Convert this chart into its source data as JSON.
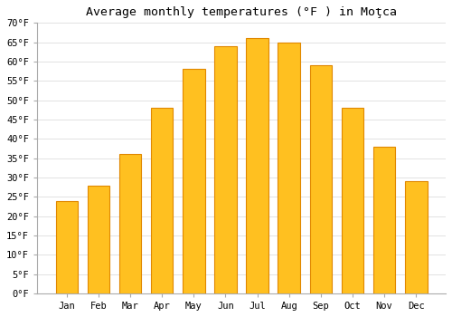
{
  "title": "Average monthly temperatures (°F ) in Moţca",
  "months": [
    "Jan",
    "Feb",
    "Mar",
    "Apr",
    "May",
    "Jun",
    "Jul",
    "Aug",
    "Sep",
    "Oct",
    "Nov",
    "Dec"
  ],
  "values": [
    24,
    28,
    36,
    48,
    58,
    64,
    66,
    65,
    59,
    48,
    38,
    29
  ],
  "bar_color_main": "#FFC020",
  "bar_color_edge": "#E08800",
  "background_color": "#FFFFFF",
  "grid_color": "#DDDDDD",
  "ylim": [
    0,
    70
  ],
  "yticks": [
    0,
    5,
    10,
    15,
    20,
    25,
    30,
    35,
    40,
    45,
    50,
    55,
    60,
    65,
    70
  ],
  "tick_label_suffix": "°F",
  "title_fontsize": 9.5,
  "tick_fontsize": 7.5,
  "bar_width": 0.7
}
